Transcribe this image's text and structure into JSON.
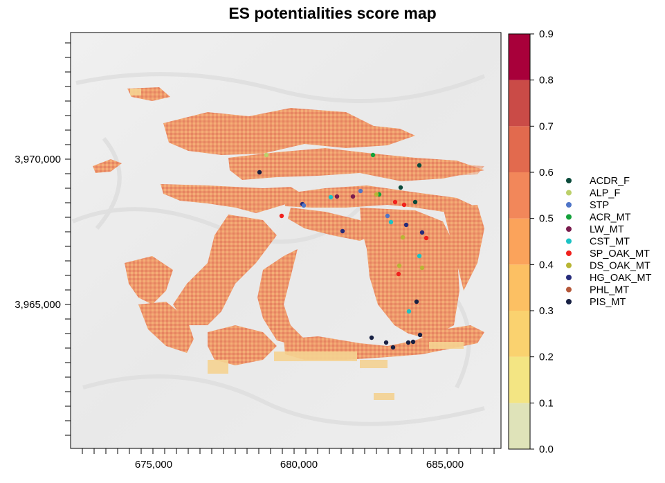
{
  "title": "ES potentialities score map",
  "x_axis": {
    "ticks": [
      "675,000",
      "680,000",
      "685,000"
    ]
  },
  "y_axis": {
    "ticks": [
      "3,970,000",
      "3,965,000"
    ]
  },
  "colorbar": {
    "ticks": [
      "0.0",
      "0.1",
      "0.2",
      "0.3",
      "0.4",
      "0.5",
      "0.6",
      "0.7",
      "0.8",
      "0.9"
    ],
    "colors": [
      "#dfe3b9",
      "#f3e583",
      "#fad26f",
      "#fcc063",
      "#fba35b",
      "#f2875a",
      "#e26a4e",
      "#ca4b47",
      "#a8003a"
    ]
  },
  "legend": [
    {
      "label": "ACDR_F",
      "color": "#0b4a3a"
    },
    {
      "label": "ALP_F",
      "color": "#bcd06a"
    },
    {
      "label": "STP",
      "color": "#4f75c8"
    },
    {
      "label": "ACR_MT",
      "color": "#13a13a"
    },
    {
      "label": "LW_MT",
      "color": "#7a1c4e"
    },
    {
      "label": "CST_MT",
      "color": "#1cc2c4"
    },
    {
      "label": "SP_OAK_MT",
      "color": "#f0211d"
    },
    {
      "label": "DS_OAK_MT",
      "color": "#b8b534"
    },
    {
      "label": "HG_OAK_MT",
      "color": "#262b7a"
    },
    {
      "label": "PHL_MT",
      "color": "#b5583a"
    },
    {
      "label": "PIS_MT",
      "color": "#172043"
    }
  ]
}
